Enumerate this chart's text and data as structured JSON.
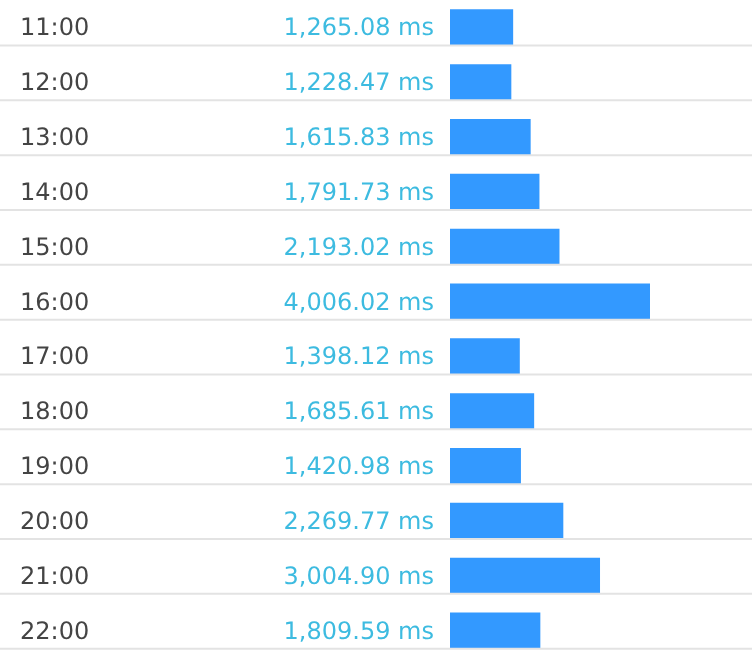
{
  "chart_data": {
    "type": "bar",
    "orientation": "horizontal",
    "categories": [
      "11:00",
      "12:00",
      "13:00",
      "14:00",
      "15:00",
      "16:00",
      "17:00",
      "18:00",
      "19:00",
      "20:00",
      "21:00",
      "22:00"
    ],
    "values": [
      1265.08,
      1228.47,
      1615.83,
      1791.73,
      2193.02,
      4006.02,
      1398.12,
      1685.61,
      1420.98,
      2269.77,
      3004.9,
      1809.59
    ],
    "value_labels": [
      "1,265.08 ms",
      "1,228.47 ms",
      "1,615.83 ms",
      "1,791.73 ms",
      "2,193.02 ms",
      "4,006.02 ms",
      "1,398.12 ms",
      "1,685.61 ms",
      "1,420.98 ms",
      "2,269.77 ms",
      "3,004.90 ms",
      "1,809.59 ms"
    ],
    "color": "#3399ff",
    "grid": "y",
    "tick_labels": "y"
  }
}
